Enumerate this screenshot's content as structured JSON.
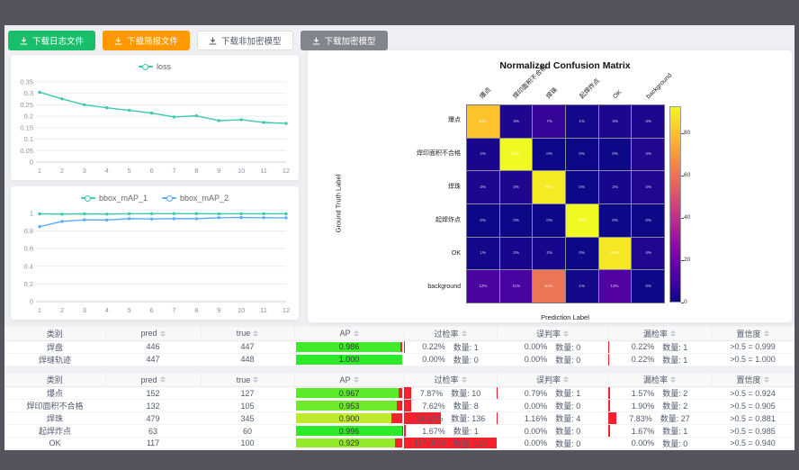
{
  "toolbar": {
    "buttons": [
      {
        "label": "下载日志文件",
        "style": "green"
      },
      {
        "label": "下载简报文件",
        "style": "orange"
      },
      {
        "label": "下载非加密模型",
        "style": "plain"
      },
      {
        "label": "下载加密模型",
        "style": "gray"
      }
    ]
  },
  "chart_data": [
    {
      "type": "line",
      "x": [
        1,
        2,
        3,
        4,
        5,
        6,
        7,
        8,
        9,
        10,
        11,
        12
      ],
      "series": [
        {
          "name": "loss",
          "color": "#3ec8b0",
          "values": [
            0.305,
            0.276,
            0.25,
            0.237,
            0.226,
            0.214,
            0.197,
            0.202,
            0.181,
            0.185,
            0.173,
            0.169
          ]
        }
      ],
      "ylim": [
        0,
        0.35
      ],
      "yticks": [
        0,
        0.05,
        0.1,
        0.15,
        0.2,
        0.25,
        0.3,
        0.35
      ],
      "legend_position": "top",
      "grid": true
    },
    {
      "type": "line",
      "x": [
        1,
        2,
        3,
        4,
        5,
        6,
        7,
        8,
        9,
        10,
        11,
        12
      ],
      "series": [
        {
          "name": "bbox_mAP_1",
          "color": "#3ec8b0",
          "values": [
            0.995,
            0.992,
            0.995,
            0.992,
            0.996,
            0.997,
            0.997,
            0.997,
            0.995,
            0.996,
            0.996,
            0.996
          ]
        },
        {
          "name": "bbox_mAP_2",
          "color": "#5cadff",
          "values": [
            0.85,
            0.909,
            0.927,
            0.925,
            0.94,
            0.937,
            0.94,
            0.94,
            0.951,
            0.953,
            0.951,
            0.95
          ]
        }
      ],
      "ylim": [
        0,
        1
      ],
      "yticks": [
        0,
        0.2,
        0.4,
        0.6,
        0.8,
        1
      ],
      "legend_position": "top",
      "grid": true
    },
    {
      "type": "heatmap",
      "title": "Normalized Confusion Matrix",
      "xlabel": "Prediction Label",
      "ylabel": "Ground Truth Label",
      "categories": [
        "爆点",
        "焊印面积不合格",
        "焊珠",
        "起焊炸点",
        "OK",
        "background"
      ],
      "matrix_percent": [
        [
          81,
          3,
          7,
          1,
          3,
          3
        ],
        [
          2,
          93,
          0,
          0,
          0,
          4
        ],
        [
          3,
          3,
          90,
          0,
          2,
          4
        ],
        [
          0,
          0,
          0,
          93,
          0,
          0
        ],
        [
          1,
          2,
          2,
          0,
          89,
          4
        ],
        [
          12,
          11,
          61,
          1,
          13,
          0
        ]
      ],
      "vmax": 93,
      "colorbar_ticks": [
        0,
        20,
        40,
        60,
        80
      ],
      "colormap": "plasma"
    }
  ],
  "table_headers": {
    "category": "类别",
    "pred": "pred",
    "true": "true",
    "ap": "AP",
    "over": "过检率",
    "mis": "误判率",
    "miss": "漏检率",
    "conf": "置信度"
  },
  "count_label": "数量",
  "tables": [
    {
      "rows": [
        {
          "category": "焊盘",
          "pred": "446",
          "true": "447",
          "ap": 0.986,
          "ap_label": "0.986",
          "over": {
            "rate": "0.22%",
            "value": 0.22,
            "count": "1"
          },
          "mis": {
            "rate": "0.00%",
            "value": 0,
            "count": "0"
          },
          "miss": {
            "rate": "0.22%",
            "value": 0.22,
            "count": "1"
          },
          "conf": ">0.5 = 0.999"
        },
        {
          "category": "焊缝轨迹",
          "pred": "447",
          "true": "448",
          "ap": 1.0,
          "ap_label": "1.000",
          "over": {
            "rate": "0.00%",
            "value": 0,
            "count": "0"
          },
          "mis": {
            "rate": "0.00%",
            "value": 0,
            "count": "0"
          },
          "miss": {
            "rate": "0.22%",
            "value": 0.22,
            "count": "1"
          },
          "conf": ">0.5 = 1.000"
        }
      ]
    },
    {
      "rows": [
        {
          "category": "爆点",
          "pred": "152",
          "true": "127",
          "ap": 0.967,
          "ap_label": "0.967",
          "over": {
            "rate": "7.87%",
            "value": 7.87,
            "count": "10"
          },
          "mis": {
            "rate": "0.79%",
            "value": 0.79,
            "count": "1"
          },
          "miss": {
            "rate": "1.57%",
            "value": 1.57,
            "count": "2"
          },
          "conf": ">0.5 = 0.924"
        },
        {
          "category": "焊印面积不合格",
          "pred": "132",
          "true": "105",
          "ap": 0.953,
          "ap_label": "0.953",
          "over": {
            "rate": "7.62%",
            "value": 7.62,
            "count": "8"
          },
          "mis": {
            "rate": "0.00%",
            "value": 0,
            "count": "0"
          },
          "miss": {
            "rate": "1.90%",
            "value": 1.9,
            "count": "2"
          },
          "conf": ">0.5 = 0.905"
        },
        {
          "category": "焊珠",
          "pred": "479",
          "true": "345",
          "ap": 0.9,
          "ap_label": "0.900",
          "over": {
            "rate": "39.42%",
            "value": 39.42,
            "count": "136"
          },
          "mis": {
            "rate": "1.16%",
            "value": 1.16,
            "count": "4"
          },
          "miss": {
            "rate": "7.83%",
            "value": 7.83,
            "count": "27"
          },
          "conf": ">0.5 = 0.881"
        },
        {
          "category": "起焊炸点",
          "pred": "63",
          "true": "60",
          "ap": 0.996,
          "ap_label": "0.996",
          "over": {
            "rate": "1.67%",
            "value": 1.67,
            "count": "1"
          },
          "mis": {
            "rate": "0.00%",
            "value": 0,
            "count": "0"
          },
          "miss": {
            "rate": "1.67%",
            "value": 1.67,
            "count": "1"
          },
          "conf": ">0.5 = 0.985"
        },
        {
          "category": "OK",
          "pred": "117",
          "true": "100",
          "ap": 0.929,
          "ap_label": "0.929",
          "over": {
            "rate": "117.00%",
            "value": 117,
            "count": "117"
          },
          "mis": {
            "rate": "0.00%",
            "value": 0,
            "count": "0"
          },
          "miss": {
            "rate": "0.00%",
            "value": 0,
            "count": "0"
          },
          "conf": ">0.5 = 0.940"
        }
      ]
    }
  ],
  "colors": {
    "button_green": "#19be6b",
    "button_orange": "#ff9900",
    "button_gray": "#82858c",
    "loss_line": "#3ec8b0",
    "map2_line": "#5cadff",
    "bar_red": "#f5222d",
    "frame": "#54555c"
  }
}
